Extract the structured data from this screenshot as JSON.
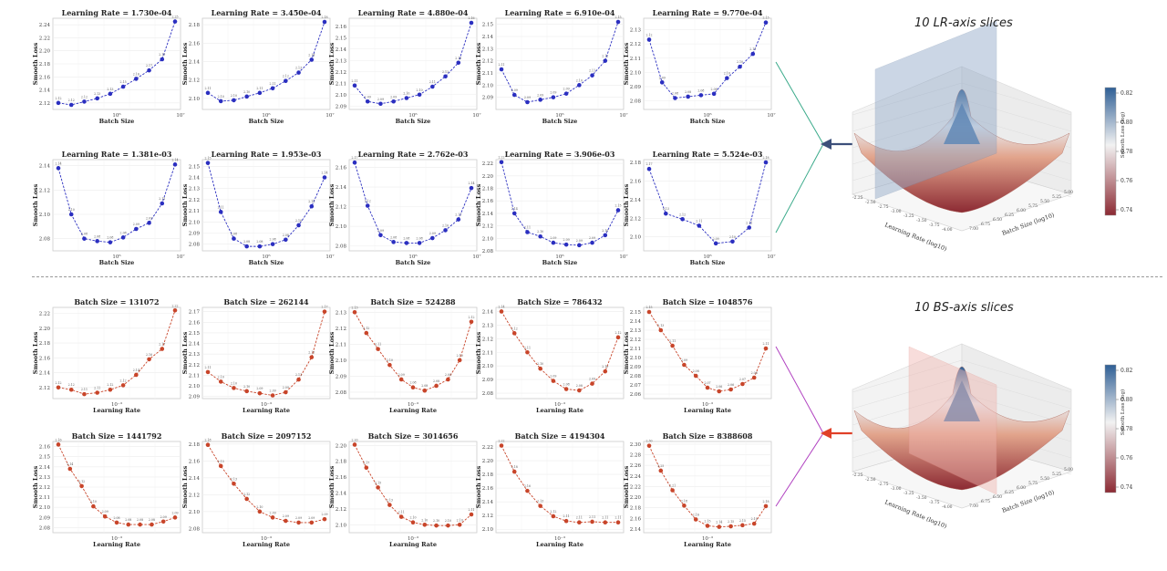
{
  "sections": [
    {
      "id": "lr",
      "side_title": "10 LR-axis slices",
      "xlabel": "Batch Size",
      "ylabel": "Smooth Loss",
      "x_tick_label": "10⁶",
      "x_tick_label_right": "10⁷",
      "panel_title_prefix": "Learning Rate = ",
      "color": "#2b2fc0",
      "surface": {
        "xlabel": "Learning Rate (log10)",
        "ylabel": "Batch Size (log10)",
        "zlabel": "Smooth Loss (log)",
        "colorbar_ticks": [
          "0.82",
          "0.80",
          "0.78",
          "0.76",
          "0.74"
        ],
        "x_ticks": [
          "-2.25",
          "-2.50",
          "-2.75",
          "-3.00",
          "-3.25",
          "-3.50",
          "-3.75",
          "-4.00"
        ],
        "y_ticks": [
          "7.00",
          "6.75",
          "6.50",
          "6.25",
          "6.00",
          "5.75",
          "5.50",
          "5.25",
          "5.00"
        ],
        "plane": "lr"
      },
      "panels": [
        {
          "param": "1.730e-04",
          "yticks": [
            "2.24",
            "2.22",
            "2.20",
            "2.18",
            "2.16",
            "2.14",
            "2.12"
          ],
          "ylim": [
            2.11,
            2.25
          ],
          "values": [
            2.12,
            2.117,
            2.122,
            2.127,
            2.134,
            2.145,
            2.157,
            2.17,
            2.187,
            2.245
          ]
        },
        {
          "param": "3.450e-04",
          "yticks": [
            "2.18",
            "2.16",
            "2.14",
            "2.12",
            "2.10"
          ],
          "ylim": [
            2.088,
            2.187
          ],
          "values": [
            2.106,
            2.097,
            2.098,
            2.102,
            2.106,
            2.111,
            2.119,
            2.128,
            2.142,
            2.183
          ]
        },
        {
          "param": "4.880e-04",
          "yticks": [
            "2.16",
            "2.15",
            "2.14",
            "2.13",
            "2.12",
            "2.11",
            "2.10",
            "2.09"
          ],
          "ylim": [
            2.087,
            2.167
          ],
          "values": [
            2.108,
            2.094,
            2.092,
            2.094,
            2.097,
            2.1,
            2.107,
            2.116,
            2.128,
            2.163
          ]
        },
        {
          "param": "6.910e-04",
          "yticks": [
            "2.15",
            "2.14",
            "2.13",
            "2.12",
            "2.11",
            "2.10",
            "2.09"
          ],
          "ylim": [
            2.08,
            2.155
          ],
          "values": [
            2.113,
            2.092,
            2.086,
            2.088,
            2.09,
            2.093,
            2.1,
            2.108,
            2.12,
            2.152
          ]
        },
        {
          "param": "9.770e-04",
          "yticks": [
            "2.13",
            "2.12",
            "2.11",
            "2.10",
            "2.09",
            "2.08"
          ],
          "ylim": [
            2.074,
            2.138
          ],
          "values": [
            2.123,
            2.093,
            2.082,
            2.083,
            2.084,
            2.085,
            2.096,
            2.104,
            2.113,
            2.135
          ]
        },
        {
          "param": "1.381e-03",
          "yticks": [
            "2.14",
            "2.12",
            "2.10",
            "2.08"
          ],
          "ylim": [
            2.07,
            2.145
          ],
          "values": [
            2.138,
            2.1,
            2.08,
            2.078,
            2.077,
            2.081,
            2.088,
            2.093,
            2.109,
            2.141
          ]
        },
        {
          "param": "1.953e-03",
          "yticks": [
            "2.15",
            "2.14",
            "2.13",
            "2.12",
            "2.11",
            "2.10",
            "2.09",
            "2.08"
          ],
          "ylim": [
            2.074,
            2.156
          ],
          "values": [
            2.153,
            2.109,
            2.085,
            2.078,
            2.078,
            2.08,
            2.084,
            2.097,
            2.114,
            2.14
          ]
        },
        {
          "param": "2.762e-03",
          "yticks": [
            "2.16",
            "2.14",
            "2.12",
            "2.10",
            "2.08"
          ],
          "ylim": [
            2.075,
            2.168
          ],
          "values": [
            2.165,
            2.121,
            2.091,
            2.084,
            2.083,
            2.083,
            2.088,
            2.096,
            2.107,
            2.139
          ]
        },
        {
          "param": "3.906e-03",
          "yticks": [
            "2.22",
            "2.20",
            "2.18",
            "2.16",
            "2.14",
            "2.12",
            "2.10",
            "2.08"
          ],
          "ylim": [
            2.08,
            2.226
          ],
          "values": [
            2.222,
            2.14,
            2.11,
            2.103,
            2.093,
            2.09,
            2.089,
            2.093,
            2.105,
            2.145
          ]
        },
        {
          "param": "5.524e-03",
          "yticks": [
            "2.18",
            "2.16",
            "2.14",
            "2.12",
            "2.10"
          ],
          "ylim": [
            2.085,
            2.183
          ],
          "values": [
            2.173,
            2.125,
            2.119,
            2.112,
            2.093,
            2.095,
            2.11,
            2.18
          ]
        }
      ]
    },
    {
      "id": "bs",
      "side_title": "10 BS-axis slices",
      "xlabel": "Learning Rate",
      "ylabel": "Smooth Loss",
      "x_tick_label": "10⁻³",
      "x_tick_label_right": "",
      "panel_title_prefix": "Batch Size = ",
      "color": "#c8452a",
      "surface": {
        "xlabel": "Learning Rate (log10)",
        "ylabel": "Batch Size (log10)",
        "zlabel": "Smooth Loss (log)",
        "colorbar_ticks": [
          "0.82",
          "0.80",
          "0.78",
          "0.76",
          "0.74"
        ],
        "x_ticks": [
          "-2.25",
          "-2.50",
          "-2.75",
          "-3.00",
          "-3.25",
          "-3.50",
          "-3.75",
          "-4.00"
        ],
        "y_ticks": [
          "7.00",
          "6.75",
          "6.50",
          "6.25",
          "6.00",
          "5.75",
          "5.50",
          "5.25",
          "5.00"
        ],
        "plane": "bs"
      },
      "panels": [
        {
          "param": "131072",
          "yticks": [
            "2.22",
            "2.20",
            "2.18",
            "2.16",
            "2.14",
            "2.12"
          ],
          "ylim": [
            2.105,
            2.228
          ],
          "values": [
            2.12,
            2.117,
            2.111,
            2.113,
            2.117,
            2.123,
            2.137,
            2.158,
            2.172,
            2.224
          ]
        },
        {
          "param": "262144",
          "yticks": [
            "2.17",
            "2.16",
            "2.15",
            "2.14",
            "2.13",
            "2.12",
            "2.11",
            "2.10",
            "2.09"
          ],
          "ylim": [
            2.088,
            2.174
          ],
          "values": [
            2.113,
            2.104,
            2.098,
            2.095,
            2.093,
            2.091,
            2.094,
            2.106,
            2.127,
            2.17
          ]
        },
        {
          "param": "524288",
          "yticks": [
            "2.13",
            "2.12",
            "2.11",
            "2.10",
            "2.09",
            "2.08"
          ],
          "ylim": [
            2.076,
            2.133
          ],
          "values": [
            2.13,
            2.117,
            2.107,
            2.097,
            2.088,
            2.083,
            2.081,
            2.084,
            2.088,
            2.1,
            2.124
          ]
        },
        {
          "param": "786432",
          "yticks": [
            "2.14",
            "2.13",
            "2.12",
            "2.11",
            "2.10",
            "2.09",
            "2.08"
          ],
          "ylim": [
            2.076,
            2.143
          ],
          "values": [
            2.14,
            2.124,
            2.11,
            2.098,
            2.089,
            2.083,
            2.082,
            2.087,
            2.096,
            2.121
          ]
        },
        {
          "param": "1048576",
          "yticks": [
            "2.15",
            "2.14",
            "2.13",
            "2.12",
            "2.11",
            "2.10",
            "2.09",
            "2.08",
            "2.07",
            "2.06"
          ],
          "ylim": [
            2.055,
            2.155
          ],
          "values": [
            2.15,
            2.13,
            2.113,
            2.092,
            2.08,
            2.067,
            2.063,
            2.065,
            2.071,
            2.078,
            2.11
          ]
        },
        {
          "param": "1441792",
          "yticks": [
            "2.16",
            "2.15",
            "2.14",
            "2.13",
            "2.12",
            "2.11",
            "2.10",
            "2.09",
            "2.08"
          ],
          "ylim": [
            2.075,
            2.165
          ],
          "values": [
            2.162,
            2.138,
            2.121,
            2.101,
            2.091,
            2.085,
            2.083,
            2.083,
            2.083,
            2.086,
            2.09
          ]
        },
        {
          "param": "2097152",
          "yticks": [
            "2.18",
            "2.16",
            "2.14",
            "2.12",
            "2.10",
            "2.08"
          ],
          "ylim": [
            2.075,
            2.183
          ],
          "values": [
            2.179,
            2.154,
            2.133,
            2.115,
            2.1,
            2.093,
            2.089,
            2.087,
            2.087,
            2.091
          ]
        },
        {
          "param": "3014656",
          "yticks": [
            "2.20",
            "2.18",
            "2.16",
            "2.14",
            "2.12",
            "2.10"
          ],
          "ylim": [
            2.09,
            2.205
          ],
          "values": [
            2.201,
            2.172,
            2.147,
            2.125,
            2.11,
            2.103,
            2.1,
            2.099,
            2.099,
            2.1,
            2.113
          ]
        },
        {
          "param": "4194304",
          "yticks": [
            "2.22",
            "2.20",
            "2.18",
            "2.16",
            "2.14",
            "2.12",
            "2.10"
          ],
          "ylim": [
            2.095,
            2.228
          ],
          "values": [
            2.222,
            2.184,
            2.156,
            2.134,
            2.119,
            2.112,
            2.11,
            2.111,
            2.11,
            2.11
          ]
        },
        {
          "param": "8388608",
          "yticks": [
            "2.30",
            "2.28",
            "2.26",
            "2.24",
            "2.22",
            "2.20",
            "2.18",
            "2.16",
            "2.14"
          ],
          "ylim": [
            2.133,
            2.305
          ],
          "values": [
            2.297,
            2.25,
            2.213,
            2.184,
            2.158,
            2.146,
            2.144,
            2.145,
            2.147,
            2.15,
            2.183
          ]
        }
      ]
    }
  ]
}
